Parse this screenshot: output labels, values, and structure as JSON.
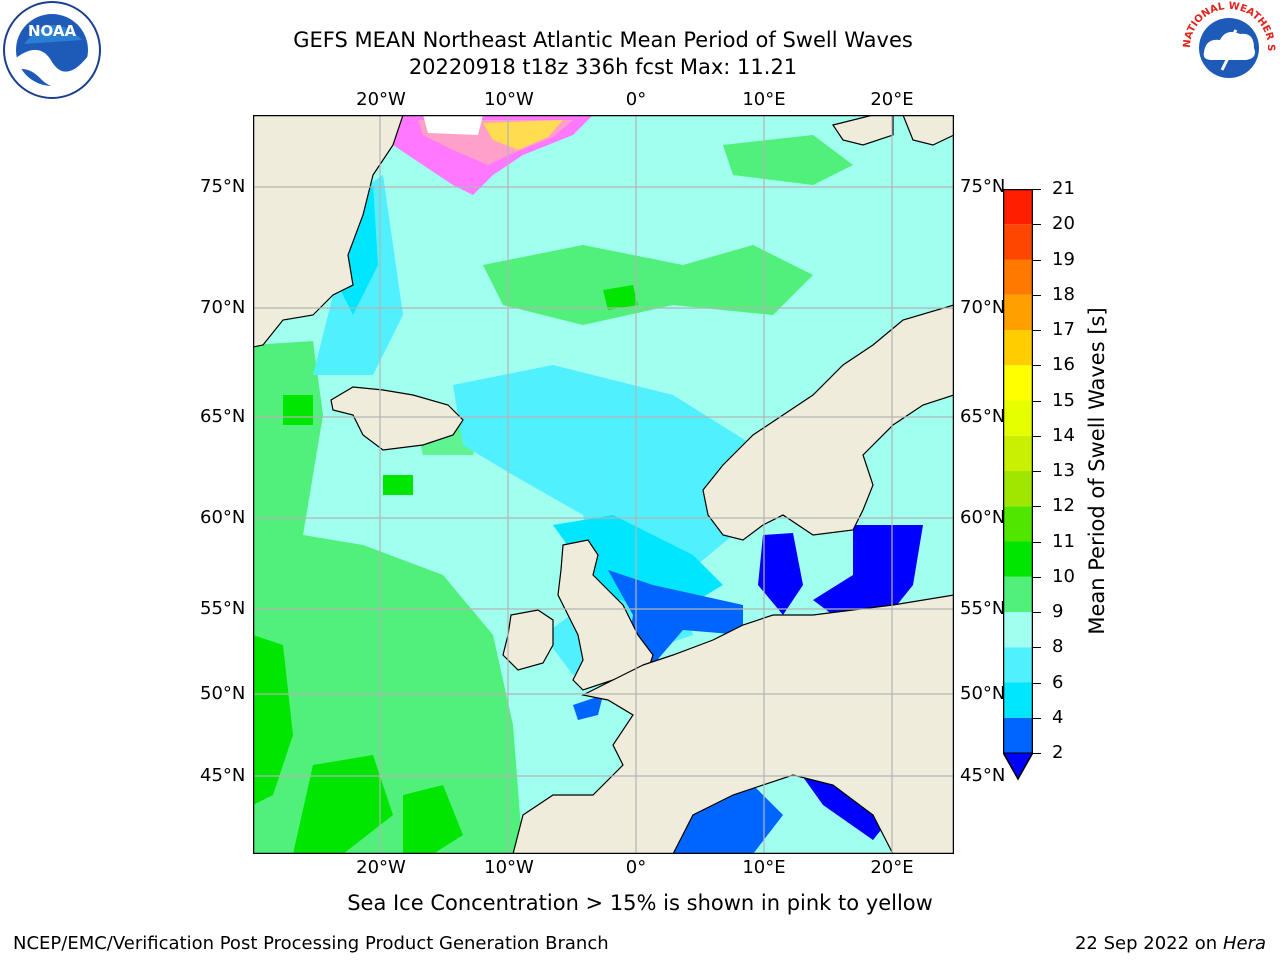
{
  "title_line1": "GEFS MEAN Northeast Atlantic Mean Period of Swell Waves",
  "title_line2": "20220918 t18z 336h fcst   Max: 11.21",
  "logos": {
    "left": "noaa-logo",
    "right": "nws-logo",
    "left_text": "NOAA",
    "right_text": "NATIONAL WEATHER SERVICE"
  },
  "map": {
    "lon_labels": [
      "20°W",
      "10°W",
      "0°",
      "10°E",
      "20°E"
    ],
    "lat_labels": [
      "75°N",
      "70°N",
      "65°N",
      "60°N",
      "55°N",
      "50°N",
      "45°N"
    ],
    "lon_range": [
      -30,
      25
    ],
    "lat_range": [
      41,
      78
    ],
    "colors": {
      "ocean_ref": "#a0ffef",
      "land": "#efecdc",
      "grid": "#b4b4b4"
    }
  },
  "colorbar": {
    "label": "Mean Period of Swell Waves [s]",
    "ticks": [
      "2",
      "4",
      "6",
      "8",
      "9",
      "10",
      "11",
      "12",
      "13",
      "14",
      "15",
      "16",
      "17",
      "18",
      "19",
      "20",
      "21"
    ],
    "colors": [
      "#0064ff",
      "#00e6ff",
      "#50f0ff",
      "#a0ffef",
      "#50f07a",
      "#00e600",
      "#50e600",
      "#a0e600",
      "#c8f000",
      "#e6ff00",
      "#ffff00",
      "#ffcd00",
      "#ffa000",
      "#ff7800",
      "#ff4600",
      "#ff1e00"
    ],
    "under_color": "#0000ff"
  },
  "footnote": "Sea Ice Concentration > 15% is shown in pink to yellow",
  "credit": "NCEP/EMC/Verification Post Processing Product Generation Branch",
  "stamp": {
    "date": "22 Sep 2022",
    "on": "on",
    "machine": "Hera"
  }
}
